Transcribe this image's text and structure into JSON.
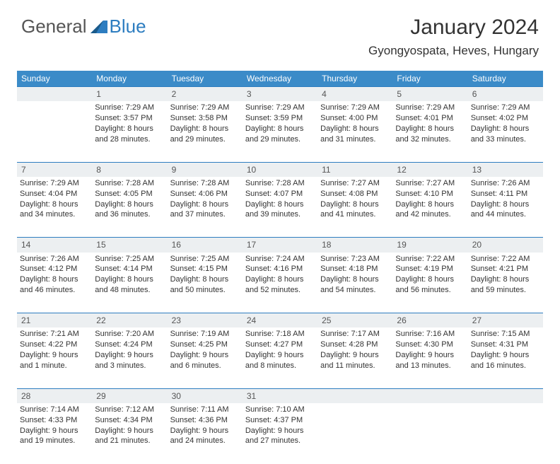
{
  "brand": {
    "text1": "General",
    "text2": "Blue"
  },
  "title": "January 2024",
  "location": "Gyongyospata, Heves, Hungary",
  "colors": {
    "header_bg": "#3b8bc8",
    "header_text": "#ffffff",
    "daynum_bg": "#eceff1",
    "border": "#2d7dc0",
    "body_text": "#333333",
    "brand_blue": "#2d7dc0",
    "brand_gray": "#555555"
  },
  "font": {
    "title_size": 30,
    "location_size": 17,
    "header_size": 12,
    "cell_size": 11
  },
  "day_names": [
    "Sunday",
    "Monday",
    "Tuesday",
    "Wednesday",
    "Thursday",
    "Friday",
    "Saturday"
  ],
  "weeks": [
    [
      null,
      {
        "n": "1",
        "sr": "Sunrise: 7:29 AM",
        "ss": "Sunset: 3:57 PM",
        "d1": "Daylight: 8 hours",
        "d2": "and 28 minutes."
      },
      {
        "n": "2",
        "sr": "Sunrise: 7:29 AM",
        "ss": "Sunset: 3:58 PM",
        "d1": "Daylight: 8 hours",
        "d2": "and 29 minutes."
      },
      {
        "n": "3",
        "sr": "Sunrise: 7:29 AM",
        "ss": "Sunset: 3:59 PM",
        "d1": "Daylight: 8 hours",
        "d2": "and 29 minutes."
      },
      {
        "n": "4",
        "sr": "Sunrise: 7:29 AM",
        "ss": "Sunset: 4:00 PM",
        "d1": "Daylight: 8 hours",
        "d2": "and 31 minutes."
      },
      {
        "n": "5",
        "sr": "Sunrise: 7:29 AM",
        "ss": "Sunset: 4:01 PM",
        "d1": "Daylight: 8 hours",
        "d2": "and 32 minutes."
      },
      {
        "n": "6",
        "sr": "Sunrise: 7:29 AM",
        "ss": "Sunset: 4:02 PM",
        "d1": "Daylight: 8 hours",
        "d2": "and 33 minutes."
      }
    ],
    [
      {
        "n": "7",
        "sr": "Sunrise: 7:29 AM",
        "ss": "Sunset: 4:04 PM",
        "d1": "Daylight: 8 hours",
        "d2": "and 34 minutes."
      },
      {
        "n": "8",
        "sr": "Sunrise: 7:28 AM",
        "ss": "Sunset: 4:05 PM",
        "d1": "Daylight: 8 hours",
        "d2": "and 36 minutes."
      },
      {
        "n": "9",
        "sr": "Sunrise: 7:28 AM",
        "ss": "Sunset: 4:06 PM",
        "d1": "Daylight: 8 hours",
        "d2": "and 37 minutes."
      },
      {
        "n": "10",
        "sr": "Sunrise: 7:28 AM",
        "ss": "Sunset: 4:07 PM",
        "d1": "Daylight: 8 hours",
        "d2": "and 39 minutes."
      },
      {
        "n": "11",
        "sr": "Sunrise: 7:27 AM",
        "ss": "Sunset: 4:08 PM",
        "d1": "Daylight: 8 hours",
        "d2": "and 41 minutes."
      },
      {
        "n": "12",
        "sr": "Sunrise: 7:27 AM",
        "ss": "Sunset: 4:10 PM",
        "d1": "Daylight: 8 hours",
        "d2": "and 42 minutes."
      },
      {
        "n": "13",
        "sr": "Sunrise: 7:26 AM",
        "ss": "Sunset: 4:11 PM",
        "d1": "Daylight: 8 hours",
        "d2": "and 44 minutes."
      }
    ],
    [
      {
        "n": "14",
        "sr": "Sunrise: 7:26 AM",
        "ss": "Sunset: 4:12 PM",
        "d1": "Daylight: 8 hours",
        "d2": "and 46 minutes."
      },
      {
        "n": "15",
        "sr": "Sunrise: 7:25 AM",
        "ss": "Sunset: 4:14 PM",
        "d1": "Daylight: 8 hours",
        "d2": "and 48 minutes."
      },
      {
        "n": "16",
        "sr": "Sunrise: 7:25 AM",
        "ss": "Sunset: 4:15 PM",
        "d1": "Daylight: 8 hours",
        "d2": "and 50 minutes."
      },
      {
        "n": "17",
        "sr": "Sunrise: 7:24 AM",
        "ss": "Sunset: 4:16 PM",
        "d1": "Daylight: 8 hours",
        "d2": "and 52 minutes."
      },
      {
        "n": "18",
        "sr": "Sunrise: 7:23 AM",
        "ss": "Sunset: 4:18 PM",
        "d1": "Daylight: 8 hours",
        "d2": "and 54 minutes."
      },
      {
        "n": "19",
        "sr": "Sunrise: 7:22 AM",
        "ss": "Sunset: 4:19 PM",
        "d1": "Daylight: 8 hours",
        "d2": "and 56 minutes."
      },
      {
        "n": "20",
        "sr": "Sunrise: 7:22 AM",
        "ss": "Sunset: 4:21 PM",
        "d1": "Daylight: 8 hours",
        "d2": "and 59 minutes."
      }
    ],
    [
      {
        "n": "21",
        "sr": "Sunrise: 7:21 AM",
        "ss": "Sunset: 4:22 PM",
        "d1": "Daylight: 9 hours",
        "d2": "and 1 minute."
      },
      {
        "n": "22",
        "sr": "Sunrise: 7:20 AM",
        "ss": "Sunset: 4:24 PM",
        "d1": "Daylight: 9 hours",
        "d2": "and 3 minutes."
      },
      {
        "n": "23",
        "sr": "Sunrise: 7:19 AM",
        "ss": "Sunset: 4:25 PM",
        "d1": "Daylight: 9 hours",
        "d2": "and 6 minutes."
      },
      {
        "n": "24",
        "sr": "Sunrise: 7:18 AM",
        "ss": "Sunset: 4:27 PM",
        "d1": "Daylight: 9 hours",
        "d2": "and 8 minutes."
      },
      {
        "n": "25",
        "sr": "Sunrise: 7:17 AM",
        "ss": "Sunset: 4:28 PM",
        "d1": "Daylight: 9 hours",
        "d2": "and 11 minutes."
      },
      {
        "n": "26",
        "sr": "Sunrise: 7:16 AM",
        "ss": "Sunset: 4:30 PM",
        "d1": "Daylight: 9 hours",
        "d2": "and 13 minutes."
      },
      {
        "n": "27",
        "sr": "Sunrise: 7:15 AM",
        "ss": "Sunset: 4:31 PM",
        "d1": "Daylight: 9 hours",
        "d2": "and 16 minutes."
      }
    ],
    [
      {
        "n": "28",
        "sr": "Sunrise: 7:14 AM",
        "ss": "Sunset: 4:33 PM",
        "d1": "Daylight: 9 hours",
        "d2": "and 19 minutes."
      },
      {
        "n": "29",
        "sr": "Sunrise: 7:12 AM",
        "ss": "Sunset: 4:34 PM",
        "d1": "Daylight: 9 hours",
        "d2": "and 21 minutes."
      },
      {
        "n": "30",
        "sr": "Sunrise: 7:11 AM",
        "ss": "Sunset: 4:36 PM",
        "d1": "Daylight: 9 hours",
        "d2": "and 24 minutes."
      },
      {
        "n": "31",
        "sr": "Sunrise: 7:10 AM",
        "ss": "Sunset: 4:37 PM",
        "d1": "Daylight: 9 hours",
        "d2": "and 27 minutes."
      },
      null,
      null,
      null
    ]
  ]
}
